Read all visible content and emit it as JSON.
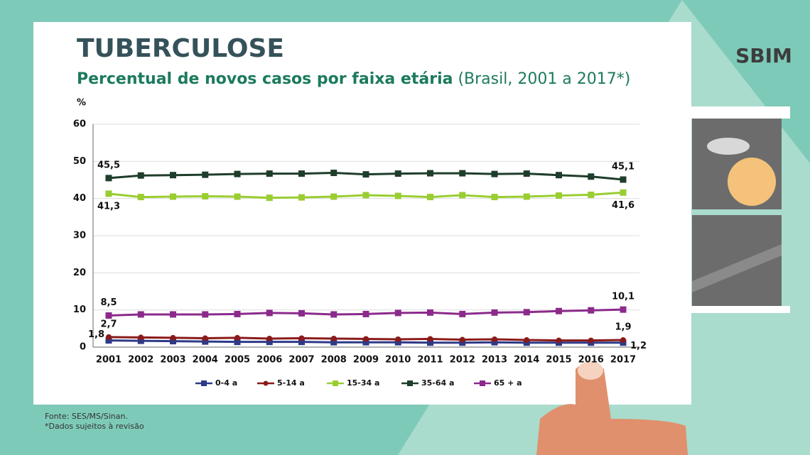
{
  "title": "TUBERCULOSE",
  "logo": "SBIM",
  "source": "Fonte: SES/MS/Sinan.",
  "footnote": "*Dados sujeitos à revisão",
  "chart_data": {
    "type": "line",
    "subtitle_main": "Percentual de novos casos por faixa etária",
    "subtitle_rest": "(Brasil, 2001 a 2017*)",
    "y_label": "%",
    "categories": [
      "2001",
      "2002",
      "2003",
      "2004",
      "2005",
      "2006",
      "2007",
      "2008",
      "2009",
      "2010",
      "2011",
      "2012",
      "2013",
      "2014",
      "2015",
      "2016",
      "2017"
    ],
    "ylim": [
      0,
      60
    ],
    "yticks": [
      0,
      10,
      20,
      30,
      40,
      50,
      60
    ],
    "grid": true,
    "legend": "bottom",
    "series": [
      {
        "name": "0-4 a",
        "color": "#2e3a87",
        "marker": "square",
        "values": [
          1.8,
          1.7,
          1.6,
          1.5,
          1.4,
          1.4,
          1.4,
          1.3,
          1.3,
          1.3,
          1.2,
          1.2,
          1.3,
          1.2,
          1.2,
          1.2,
          1.2
        ],
        "value_labels": [
          "1,8",
          null,
          null,
          null,
          null,
          null,
          null,
          null,
          null,
          null,
          null,
          null,
          null,
          null,
          null,
          null,
          "1,2"
        ]
      },
      {
        "name": "5-14 a",
        "color": "#8b1a1a",
        "marker": "circle",
        "values": [
          2.7,
          2.6,
          2.5,
          2.4,
          2.5,
          2.3,
          2.4,
          2.3,
          2.2,
          2.1,
          2.2,
          2.0,
          2.1,
          1.9,
          1.8,
          1.8,
          1.9
        ],
        "value_labels": [
          "2,7",
          null,
          null,
          null,
          null,
          null,
          null,
          null,
          null,
          null,
          null,
          null,
          null,
          null,
          null,
          null,
          "1,9"
        ]
      },
      {
        "name": "15-34 a",
        "color": "#9acd32",
        "marker": "square",
        "values": [
          41.3,
          40.4,
          40.5,
          40.6,
          40.5,
          40.2,
          40.3,
          40.5,
          40.9,
          40.7,
          40.4,
          40.9,
          40.4,
          40.5,
          40.8,
          41.0,
          41.6
        ],
        "value_labels": [
          "41,3",
          null,
          null,
          null,
          null,
          null,
          null,
          null,
          null,
          null,
          null,
          null,
          null,
          null,
          null,
          null,
          "41,6"
        ]
      },
      {
        "name": "35-64 a",
        "color": "#1e3d2a",
        "marker": "square",
        "values": [
          45.5,
          46.2,
          46.3,
          46.4,
          46.6,
          46.7,
          46.7,
          46.9,
          46.5,
          46.7,
          46.8,
          46.8,
          46.6,
          46.7,
          46.3,
          45.9,
          45.1
        ],
        "value_labels": [
          "45,5",
          null,
          null,
          null,
          null,
          null,
          null,
          null,
          null,
          null,
          null,
          null,
          null,
          null,
          null,
          null,
          "45,1"
        ]
      },
      {
        "name": "65 + a",
        "color": "#8b2a8b",
        "marker": "square",
        "values": [
          8.5,
          8.8,
          8.8,
          8.8,
          8.9,
          9.2,
          9.1,
          8.8,
          8.9,
          9.2,
          9.3,
          8.9,
          9.3,
          9.4,
          9.7,
          9.9,
          10.1
        ],
        "value_labels": [
          "8,5",
          null,
          null,
          null,
          null,
          null,
          null,
          null,
          null,
          null,
          null,
          null,
          null,
          null,
          null,
          null,
          "10,1"
        ]
      }
    ]
  }
}
